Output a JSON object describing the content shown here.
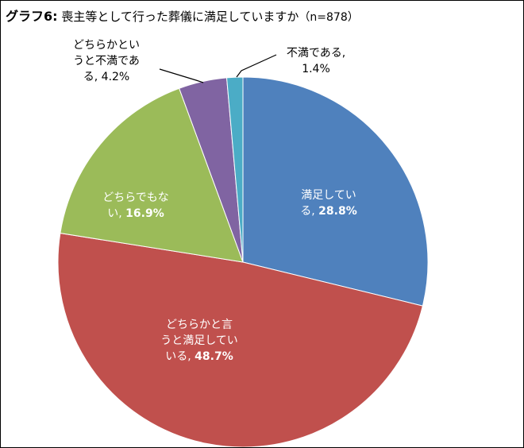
{
  "title": {
    "graph_no": "グラフ6",
    "colon": ":",
    "question": " 喪主等として行った葬儀に満足していますか",
    "n_note": "（n=878）"
  },
  "chart_data": {
    "type": "pie",
    "title": "喪主等として行った葬儀に満足していますか（n=878）",
    "start_angle_deg": 0,
    "direction": "clockwise",
    "slices": [
      {
        "label": "満足している",
        "value": 28.8,
        "color": "#4F81BD"
      },
      {
        "label": "どちらかと言うと満足している",
        "value": 48.7,
        "color": "#C0504D"
      },
      {
        "label": "どちらでもない",
        "value": 16.9,
        "color": "#9BBB59"
      },
      {
        "label": "どちらかというと不満である",
        "value": 4.2,
        "color": "#8064A2"
      },
      {
        "label": "不満である",
        "value": 1.4,
        "color": "#4BACC6"
      }
    ],
    "data_labels": [
      {
        "line1": "満足してい",
        "line2_text": "る, ",
        "pct": "28.8%"
      },
      {
        "line1": "どちらかと言",
        "line2": "うと満足してい",
        "line3_text": "いる, ",
        "pct": "48.7%"
      },
      {
        "line1": "どちらでもな",
        "line2_text": "い, ",
        "pct": "16.9%"
      },
      {
        "line1": "どちらかとい",
        "line2": "うと不満であ",
        "line3": "る, 4.2%"
      },
      {
        "line1": "不満である,",
        "line2": "1.4%"
      }
    ],
    "legend": "none"
  }
}
